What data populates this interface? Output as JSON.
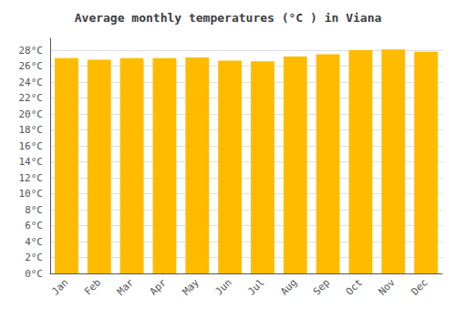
{
  "chart_data": {
    "type": "bar",
    "title": "Average monthly temperatures (°C ) in Viana",
    "categories": [
      "Jan",
      "Feb",
      "Mar",
      "Apr",
      "May",
      "Jun",
      "Jul",
      "Aug",
      "Sep",
      "Oct",
      "Nov",
      "Dec"
    ],
    "values": [
      27.0,
      26.8,
      27.0,
      27.0,
      27.1,
      26.7,
      26.6,
      27.2,
      27.5,
      28.0,
      28.1,
      27.8
    ],
    "color": "#FFBB00",
    "ylim": [
      0,
      29.5
    ],
    "yticks": [
      {
        "value": 0,
        "label": "0°C"
      },
      {
        "value": 2,
        "label": "2°C"
      },
      {
        "value": 4,
        "label": "4°C"
      },
      {
        "value": 6,
        "label": "6°C"
      },
      {
        "value": 8,
        "label": "8°C"
      },
      {
        "value": 10,
        "label": "10°C"
      },
      {
        "value": 12,
        "label": "12°C"
      },
      {
        "value": 14,
        "label": "14°C"
      },
      {
        "value": 16,
        "label": "16°C"
      },
      {
        "value": 18,
        "label": "18°C"
      },
      {
        "value": 20,
        "label": "20°C"
      },
      {
        "value": 22,
        "label": "22°C"
      },
      {
        "value": 24,
        "label": "24°C"
      },
      {
        "value": 26,
        "label": "26°C"
      },
      {
        "value": 28,
        "label": "28°C"
      }
    ],
    "grid": true
  }
}
